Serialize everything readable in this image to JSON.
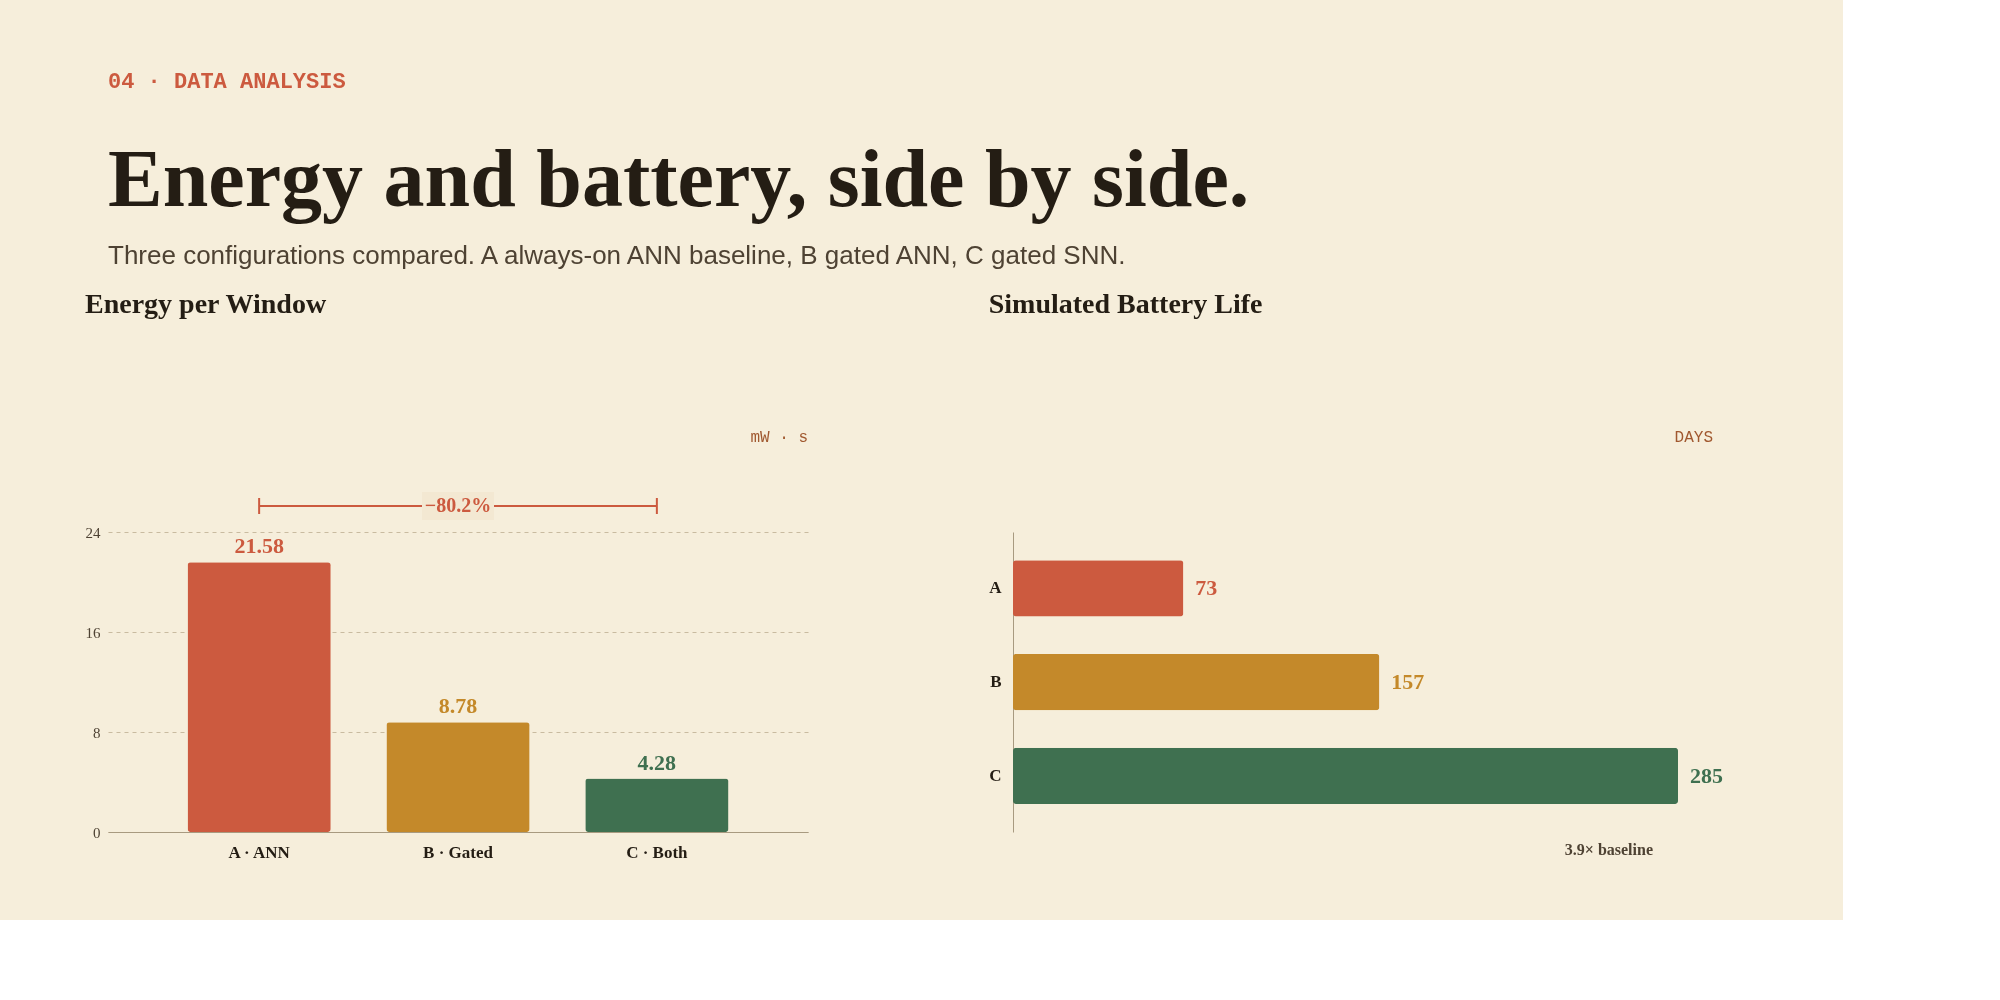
{
  "chart_data": [
    {
      "type": "other",
      "title": "Energy and battery, side by side.",
      "subtitle": "Three configurations compared. A always-on ANN baseline, B gated ANN, C gated SNN.",
      "annotations": [
        "04 · DATA ANALYSIS"
      ]
    },
    {
      "type": "bar",
      "title": "Energy per Window",
      "ylabel": "mW · s",
      "categories": [
        "A · ANN",
        "B · Gated",
        "C · Both"
      ],
      "values": [
        21.58,
        8.78,
        4.28
      ],
      "colors": [
        "#cc5a3f",
        "#c4892a",
        "#3f7050"
      ],
      "ylim": [
        0,
        24
      ],
      "yticks": [
        0,
        8,
        16,
        24
      ],
      "grid": "y",
      "data_labels": true,
      "annotations": [
        "−80.2%"
      ]
    },
    {
      "type": "bar",
      "orientation": "horizontal",
      "title": "Simulated Battery Life",
      "xlabel": "DAYS",
      "categories": [
        "A",
        "B",
        "C"
      ],
      "values": [
        73,
        157,
        285
      ],
      "colors": [
        "#cc5a3f",
        "#c4892a",
        "#3f7050"
      ],
      "tick_labels": "y",
      "grid": false,
      "data_labels": true,
      "annotations": [
        "3.9× baseline"
      ]
    }
  ]
}
